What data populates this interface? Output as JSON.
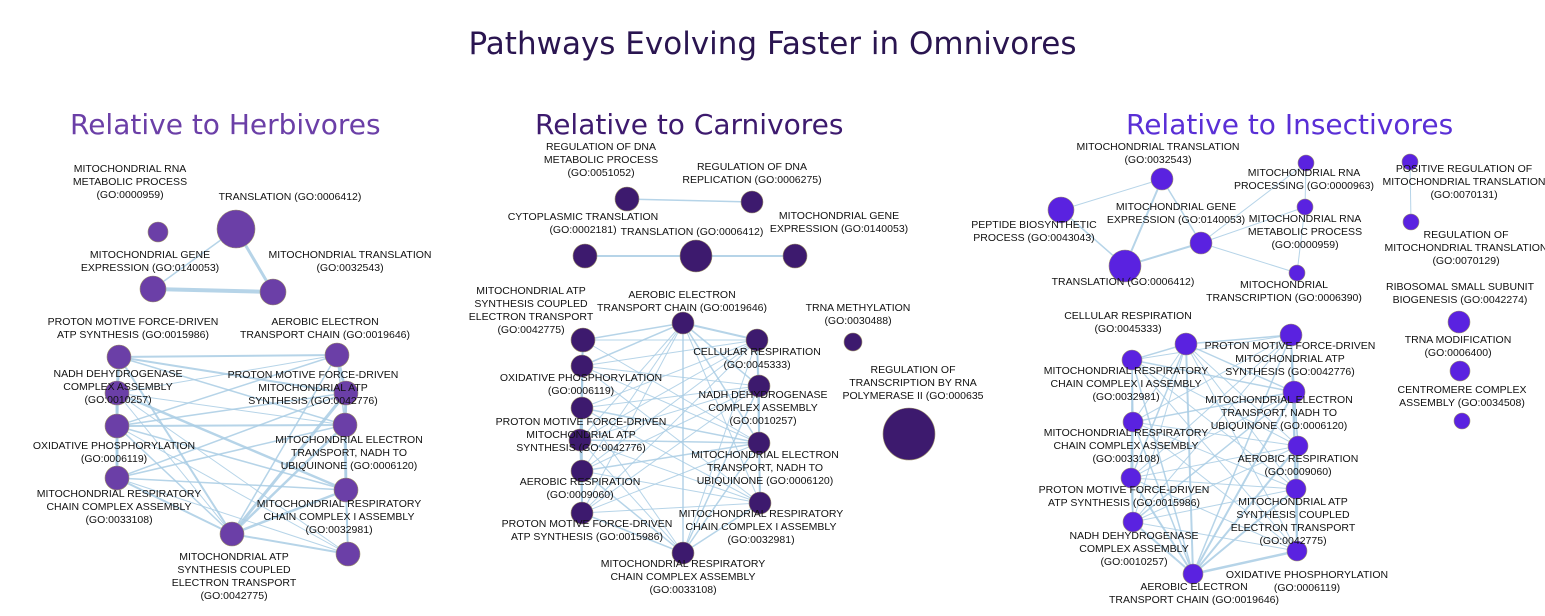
{
  "title": "Pathways Evolving Faster in Omnivores",
  "panels": [
    {
      "title": "Relative to Herbivores",
      "color": "#6b3fa7",
      "title_color": "#6b3fa7",
      "nodes": [
        {
          "id": "h0",
          "label": [
            "MITOCHONDRIAL RNA",
            "METABOLIC PROCESS",
            "(GO:0000959)"
          ]
        },
        {
          "id": "h1",
          "label": [
            "TRANSLATION (GO:0006412)"
          ]
        },
        {
          "id": "h2",
          "label": [
            "MITOCHONDRIAL GENE",
            "EXPRESSION (GO:0140053)"
          ]
        },
        {
          "id": "h3",
          "label": [
            "MITOCHONDRIAL TRANSLATION",
            "(GO:0032543)"
          ]
        },
        {
          "id": "h4",
          "label": [
            "PROTON MOTIVE FORCE-DRIVEN",
            "ATP SYNTHESIS (GO:0015986)"
          ]
        },
        {
          "id": "h5",
          "label": [
            "AEROBIC ELECTRON",
            "TRANSPORT CHAIN (GO:0019646)"
          ]
        },
        {
          "id": "h6",
          "label": [
            "NADH DEHYDROGENASE",
            "COMPLEX ASSEMBLY",
            "(GO:0010257)"
          ]
        },
        {
          "id": "h7",
          "label": [
            "PROTON MOTIVE FORCE-DRIVEN",
            "MITOCHONDRIAL ATP",
            "SYNTHESIS (GO:0042776)"
          ]
        },
        {
          "id": "h8",
          "label": [
            "OXIDATIVE PHOSPHORYLATION",
            "(GO:0006119)"
          ]
        },
        {
          "id": "h9",
          "label": [
            "MITOCHONDRIAL ELECTRON",
            "TRANSPORT, NADH TO",
            "UBIQUINONE (GO:0006120)"
          ]
        },
        {
          "id": "h10",
          "label": [
            "MITOCHONDRIAL RESPIRATORY",
            "CHAIN COMPLEX ASSEMBLY",
            "(GO:0033108)"
          ]
        },
        {
          "id": "h11",
          "label": [
            "MITOCHONDRIAL RESPIRATORY",
            "CHAIN COMPLEX I ASSEMBLY",
            "(GO:0032981)"
          ]
        },
        {
          "id": "h12",
          "label": [
            "MITOCHONDRIAL ATP",
            "SYNTHESIS COUPLED",
            "ELECTRON TRANSPORT",
            "(GO:0042775)"
          ]
        },
        {
          "id": "h13",
          "label": []
        }
      ]
    },
    {
      "title": "Relative to Carnivores",
      "color": "#3d1a6e",
      "title_color": "#3d1a6e",
      "nodes": [
        {
          "id": "c0",
          "label": [
            "REGULATION OF DNA",
            "METABOLIC PROCESS",
            "(GO:0051052)"
          ]
        },
        {
          "id": "c1",
          "label": [
            "REGULATION OF DNA",
            "REPLICATION (GO:0006275)"
          ]
        },
        {
          "id": "c2",
          "label": [
            "CYTOPLASMIC TRANSLATION",
            "(GO:0002181)"
          ]
        },
        {
          "id": "c3",
          "label": [
            "TRANSLATION (GO:0006412)"
          ]
        },
        {
          "id": "c4",
          "label": [
            "MITOCHONDRIAL GENE",
            "EXPRESSION (GO:0140053)"
          ]
        },
        {
          "id": "c5",
          "label": [
            "MITOCHONDRIAL ATP",
            "SYNTHESIS COUPLED",
            "ELECTRON TRANSPORT",
            "(GO:0042775)"
          ]
        },
        {
          "id": "c6",
          "label": [
            "AEROBIC ELECTRON",
            "TRANSPORT CHAIN (GO:0019646)"
          ]
        },
        {
          "id": "c7",
          "label": [
            "TRNA METHYLATION",
            "(GO:0030488)"
          ]
        },
        {
          "id": "c8",
          "label": [
            "CELLULAR RESPIRATION",
            "(GO:0045333)"
          ]
        },
        {
          "id": "c9",
          "label": []
        },
        {
          "id": "c10",
          "label": [
            "OXIDATIVE PHOSPHORYLATION",
            "(GO:0006119)"
          ]
        },
        {
          "id": "c11",
          "label": [
            "NADH DEHYDROGENASE",
            "COMPLEX ASSEMBLY",
            "(GO:0010257)"
          ]
        },
        {
          "id": "c12",
          "label": [
            "REGULATION OF",
            "TRANSCRIPTION BY RNA",
            "POLYMERASE II (GO:000635"
          ]
        },
        {
          "id": "c13",
          "label": [
            "PROTON MOTIVE FORCE-DRIVEN",
            "MITOCHONDRIAL ATP",
            "SYNTHESIS (GO:0042776)"
          ]
        },
        {
          "id": "c14",
          "label": [
            "MITOCHONDRIAL ELECTRON",
            "TRANSPORT, NADH TO",
            "UBIQUINONE (GO:0006120)"
          ]
        },
        {
          "id": "c15",
          "label": [
            "AEROBIC RESPIRATION",
            "(GO:0009060)"
          ]
        },
        {
          "id": "c16",
          "label": [
            "MITOCHONDRIAL RESPIRATORY",
            "CHAIN COMPLEX I ASSEMBLY",
            "(GO:0032981)"
          ]
        },
        {
          "id": "c17",
          "label": [
            "PROTON MOTIVE FORCE-DRIVEN",
            "ATP SYNTHESIS (GO:0015986)"
          ]
        },
        {
          "id": "c18",
          "label": [
            "MITOCHONDRIAL RESPIRATORY",
            "CHAIN COMPLEX ASSEMBLY",
            "(GO:0033108)"
          ]
        }
      ]
    },
    {
      "title": "Relative to Insectivores",
      "color": "#5a22e0",
      "title_color": "#5a2fd6",
      "nodes": [
        {
          "id": "i0",
          "label": [
            "MITOCHONDRIAL TRANSLATION",
            "(GO:0032543)"
          ]
        },
        {
          "id": "i1",
          "label": [
            "MITOCHONDRIAL RNA",
            "PROCESSING (GO:0000963)"
          ]
        },
        {
          "id": "i2",
          "label": [
            "POSITIVE REGULATION OF",
            "MITOCHONDRIAL TRANSLATION",
            "(GO:0070131)"
          ]
        },
        {
          "id": "i3",
          "label": [
            "PEPTIDE BIOSYNTHETIC",
            "PROCESS (GO:0043043)"
          ]
        },
        {
          "id": "i4",
          "label": [
            "MITOCHONDRIAL GENE",
            "EXPRESSION (GO:0140053)"
          ]
        },
        {
          "id": "i5",
          "label": [
            "MITOCHONDRIAL RNA",
            "METABOLIC PROCESS",
            "(GO:0000959)"
          ]
        },
        {
          "id": "i6",
          "label": [
            "REGULATION OF",
            "MITOCHONDRIAL TRANSLATION",
            "(GO:0070129)"
          ]
        },
        {
          "id": "i7",
          "label": [
            "TRANSLATION (GO:0006412)"
          ]
        },
        {
          "id": "i8",
          "label": [
            "MITOCHONDRIAL",
            "TRANSCRIPTION (GO:0006390)"
          ]
        },
        {
          "id": "i9",
          "label": [
            "RIBOSOMAL SMALL SUBUNIT",
            "BIOGENESIS (GO:0042274)"
          ]
        },
        {
          "id": "i10",
          "label": [
            "CELLULAR RESPIRATION",
            "(GO:0045333)"
          ]
        },
        {
          "id": "i11",
          "label": [
            "PROTON MOTIVE FORCE-DRIVEN",
            "MITOCHONDRIAL ATP",
            "SYNTHESIS (GO:0042776)"
          ]
        },
        {
          "id": "i12",
          "label": [
            "TRNA MODIFICATION",
            "(GO:0006400)"
          ]
        },
        {
          "id": "i13",
          "label": [
            "MITOCHONDRIAL RESPIRATORY",
            "CHAIN COMPLEX I ASSEMBLY",
            "(GO:0032981)"
          ]
        },
        {
          "id": "i14",
          "label": [
            "CENTROMERE COMPLEX",
            "ASSEMBLY (GO:0034508)"
          ]
        },
        {
          "id": "i15",
          "label": [
            "MITOCHONDRIAL ELECTRON",
            "TRANSPORT, NADH TO",
            "UBIQUINONE (GO:0006120)"
          ]
        },
        {
          "id": "i16",
          "label": [
            "MITOCHONDRIAL RESPIRATORY",
            "CHAIN COMPLEX ASSEMBLY",
            "(GO:0033108)"
          ]
        },
        {
          "id": "i17",
          "label": [
            "AEROBIC RESPIRATION",
            "(GO:0009060)"
          ]
        },
        {
          "id": "i18",
          "label": [
            "PROTON MOTIVE FORCE-DRIVEN",
            "ATP SYNTHESIS (GO:0015986)"
          ]
        },
        {
          "id": "i19",
          "label": [
            "MITOCHONDRIAL ATP",
            "SYNTHESIS COUPLED",
            "ELECTRON TRANSPORT",
            "(GO:0042775)"
          ]
        },
        {
          "id": "i20",
          "label": [
            "NADH DEHYDROGENASE",
            "COMPLEX ASSEMBLY",
            "(GO:0010257)"
          ]
        },
        {
          "id": "i21",
          "label": [
            "OXIDATIVE PHOSPHORYLATION",
            "(GO:0006119)"
          ]
        },
        {
          "id": "i22",
          "label": [
            "AEROBIC ELECTRON",
            "TRANSPORT CHAIN (GO:0019646)"
          ]
        }
      ]
    }
  ],
  "edge_color": "#a9cde4"
}
